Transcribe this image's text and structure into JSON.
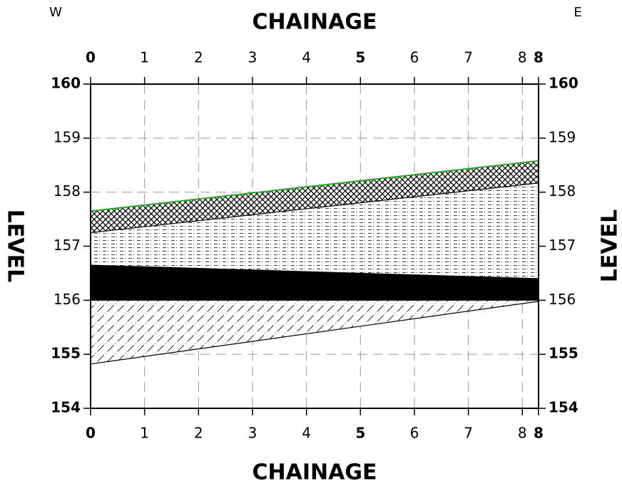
{
  "chart_data": {
    "type": "cross-section",
    "title": "CHAINAGE",
    "ylabel": "LEVEL",
    "west_label": "W",
    "east_label": "E",
    "xlim": [
      0,
      8.3
    ],
    "ylim": [
      154,
      160
    ],
    "xticks": [
      {
        "value": 0,
        "label": "0",
        "bold": true
      },
      1,
      2,
      3,
      4,
      {
        "value": 5,
        "label": "5",
        "bold": true
      },
      6,
      7,
      8,
      {
        "value": 8.3,
        "label": "8",
        "bold": true
      }
    ],
    "yticks": [
      {
        "value": 154,
        "label": "154",
        "bold": true
      },
      {
        "value": 155,
        "label": "155",
        "bold": true
      },
      156,
      157,
      158,
      159,
      {
        "value": 160,
        "label": "160",
        "bold": true
      }
    ],
    "grid": true,
    "x": [
      0,
      8.3
    ],
    "series": [
      {
        "color": "#2ca02c",
        "values": [
          157.65,
          158.58
        ]
      },
      {
        "color": "#000000",
        "values": [
          157.25,
          158.17
        ]
      },
      {
        "color": "#000000",
        "values": [
          156.65,
          156.4
        ]
      },
      {
        "color": "#000000",
        "values": [
          156.0,
          156.0
        ]
      },
      {
        "color": "#000000",
        "values": [
          154.82,
          155.98
        ]
      }
    ],
    "fills": [
      "crosshatch",
      "dashes",
      "solid",
      "diagonal"
    ]
  }
}
